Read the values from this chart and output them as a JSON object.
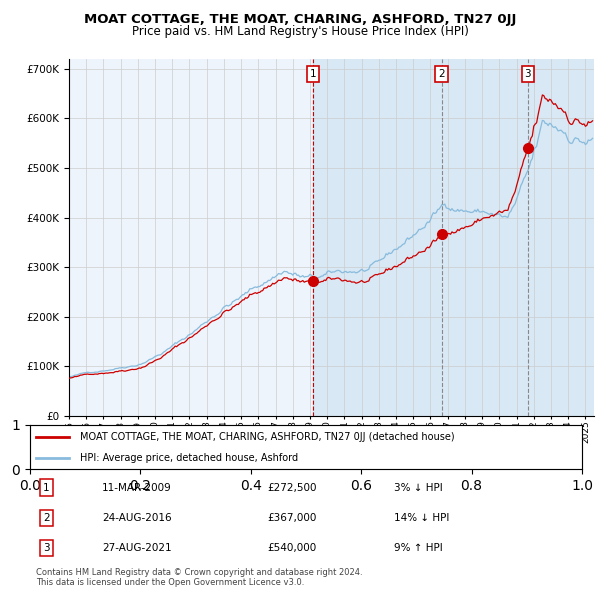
{
  "title": "MOAT COTTAGE, THE MOAT, CHARING, ASHFORD, TN27 0JJ",
  "subtitle": "Price paid vs. HM Land Registry's House Price Index (HPI)",
  "ylim": [
    0,
    720000
  ],
  "yticks": [
    0,
    100000,
    200000,
    300000,
    400000,
    500000,
    600000,
    700000
  ],
  "ytick_labels": [
    "£0",
    "£100K",
    "£200K",
    "£300K",
    "£400K",
    "£500K",
    "£600K",
    "£700K"
  ],
  "hpi_color": "#88bbdd",
  "property_color": "#cc0000",
  "plot_bg": "#eef4fb",
  "shade_color": "#d8e8f4",
  "grid_color": "#cccccc",
  "purchase_date_nums": [
    2009.19,
    2016.65,
    2021.65
  ],
  "purchase_prices_vals": [
    272500,
    367000,
    540000
  ],
  "purchase_dates": [
    "11-MAR-2009",
    "24-AUG-2016",
    "27-AUG-2021"
  ],
  "purchase_prices": [
    "£272,500",
    "£367,000",
    "£540,000"
  ],
  "purchase_hpi": [
    "3% ↓ HPI",
    "14% ↓ HPI",
    "9% ↑ HPI"
  ],
  "legend_property": "MOAT COTTAGE, THE MOAT, CHARING, ASHFORD, TN27 0JJ (detached house)",
  "legend_hpi": "HPI: Average price, detached house, Ashford",
  "footnote": "Contains HM Land Registry data © Crown copyright and database right 2024.\nThis data is licensed under the Open Government Licence v3.0.",
  "xstart": 1995.0,
  "xend": 2025.5
}
